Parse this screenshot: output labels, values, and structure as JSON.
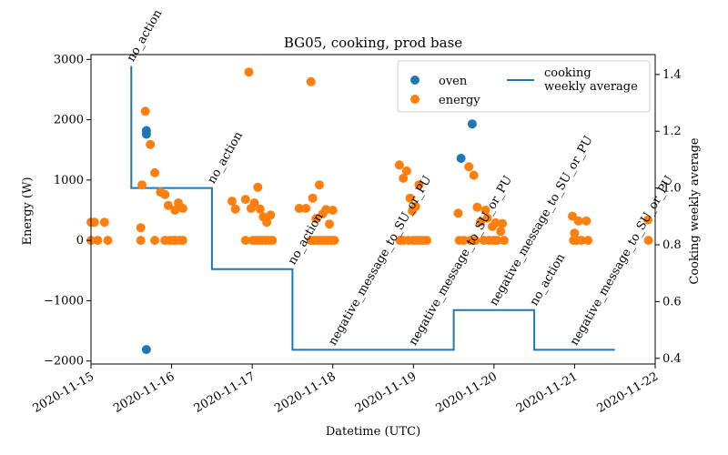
{
  "chart_data": {
    "type": "scatter",
    "title": "BG05, cooking, prod base",
    "xlabel": "Datetime (UTC)",
    "ylabel_left": "Energy (W)",
    "ylabel_right": "Cooking weekly average",
    "x_ticks": [
      "2020-11-15",
      "2020-11-16",
      "2020-11-17",
      "2020-11-18",
      "2020-11-19",
      "2020-11-20",
      "2020-11-21",
      "2020-11-22"
    ],
    "xlim": [
      "2020-11-15",
      "2020-11-22"
    ],
    "ylim_left": [
      -2050,
      3080
    ],
    "yticks_left": [
      -2000,
      -1000,
      0,
      1000,
      2000,
      3000
    ],
    "ylim_right": [
      0.38,
      1.47
    ],
    "yticks_right": [
      0.4,
      0.6,
      0.8,
      1.0,
      1.2,
      1.4
    ],
    "legend_position": "top-right",
    "series": [
      {
        "name": "oven",
        "kind": "scatter",
        "axis": "left",
        "color": "#1f77b4",
        "points": [
          [
            "2020-11-15 16:30",
            1820
          ],
          [
            "2020-11-15 16:30",
            1760
          ],
          [
            "2020-11-15 16:30",
            -1810
          ],
          [
            "2020-11-19 14:10",
            1360
          ],
          [
            "2020-11-19 17:30",
            1930
          ]
        ]
      },
      {
        "name": "energy",
        "kind": "scatter",
        "axis": "left",
        "color": "#ff7f0e",
        "points": [
          [
            "2020-11-15 00:00",
            300
          ],
          [
            "2020-11-15 01:00",
            300
          ],
          [
            "2020-11-15 04:00",
            300
          ],
          [
            "2020-11-15 00:00",
            0
          ],
          [
            "2020-11-15 02:00",
            0
          ],
          [
            "2020-11-15 05:00",
            0
          ],
          [
            "2020-11-15 14:50",
            210
          ],
          [
            "2020-11-15 14:50",
            0
          ],
          [
            "2020-11-15 15:10",
            920
          ],
          [
            "2020-11-15 16:10",
            2140
          ],
          [
            "2020-11-15 17:40",
            1590
          ],
          [
            "2020-11-15 19:00",
            1120
          ],
          [
            "2020-11-15 19:00",
            0
          ],
          [
            "2020-11-15 20:40",
            800
          ],
          [
            "2020-11-15 22:00",
            760
          ],
          [
            "2020-11-15 22:00",
            0
          ],
          [
            "2020-11-15 23:00",
            580
          ],
          [
            "2020-11-15 23:30",
            0
          ],
          [
            "2020-11-16 00:30",
            0
          ],
          [
            "2020-11-16 01:00",
            500
          ],
          [
            "2020-11-16 01:10",
            0
          ],
          [
            "2020-11-16 02:00",
            620
          ],
          [
            "2020-11-16 02:30",
            0
          ],
          [
            "2020-11-16 03:20",
            530
          ],
          [
            "2020-11-16 03:20",
            0
          ],
          [
            "2020-11-16 18:00",
            650
          ],
          [
            "2020-11-16 19:00",
            520
          ],
          [
            "2020-11-16 22:00",
            680
          ],
          [
            "2020-11-16 22:00",
            0
          ],
          [
            "2020-11-16 23:00",
            2790
          ],
          [
            "2020-11-16 23:40",
            530
          ],
          [
            "2020-11-17 00:10",
            0
          ],
          [
            "2020-11-17 00:40",
            620
          ],
          [
            "2020-11-17 01:00",
            0
          ],
          [
            "2020-11-17 01:40",
            880
          ],
          [
            "2020-11-17 02:00",
            0
          ],
          [
            "2020-11-17 02:20",
            520
          ],
          [
            "2020-11-17 03:00",
            0
          ],
          [
            "2020-11-17 03:20",
            390
          ],
          [
            "2020-11-17 04:00",
            0
          ],
          [
            "2020-11-17 04:20",
            300
          ],
          [
            "2020-11-17 05:00",
            0
          ],
          [
            "2020-11-17 05:30",
            420
          ],
          [
            "2020-11-17 06:00",
            0
          ],
          [
            "2020-11-17 14:00",
            530
          ],
          [
            "2020-11-17 16:00",
            530
          ],
          [
            "2020-11-17 17:30",
            2630
          ],
          [
            "2020-11-17 17:30",
            0
          ],
          [
            "2020-11-17 18:00",
            700
          ],
          [
            "2020-11-17 18:30",
            0
          ],
          [
            "2020-11-17 19:00",
            360
          ],
          [
            "2020-11-17 19:30",
            0
          ],
          [
            "2020-11-17 20:00",
            920
          ],
          [
            "2020-11-17 20:30",
            0
          ],
          [
            "2020-11-17 21:00",
            440
          ],
          [
            "2020-11-17 21:30",
            0
          ],
          [
            "2020-11-17 22:00",
            510
          ],
          [
            "2020-11-17 22:30",
            0
          ],
          [
            "2020-11-17 23:00",
            270
          ],
          [
            "2020-11-17 23:30",
            0
          ],
          [
            "2020-11-18 00:00",
            500
          ],
          [
            "2020-11-18 00:30",
            0
          ],
          [
            "2020-11-18 19:50",
            1250
          ],
          [
            "2020-11-18 20:00",
            0
          ],
          [
            "2020-11-18 21:00",
            1030
          ],
          [
            "2020-11-18 21:00",
            0
          ],
          [
            "2020-11-18 22:00",
            1150
          ],
          [
            "2020-11-18 22:30",
            0
          ],
          [
            "2020-11-18 23:00",
            700
          ],
          [
            "2020-11-18 23:40",
            490
          ],
          [
            "2020-11-19 00:00",
            0
          ],
          [
            "2020-11-19 00:40",
            560
          ],
          [
            "2020-11-19 01:00",
            0
          ],
          [
            "2020-11-19 01:40",
            920
          ],
          [
            "2020-11-19 02:00",
            0
          ],
          [
            "2020-11-19 03:00",
            0
          ],
          [
            "2020-11-19 04:00",
            0
          ],
          [
            "2020-11-19 13:20",
            450
          ],
          [
            "2020-11-19 13:40",
            0
          ],
          [
            "2020-11-19 15:00",
            0
          ],
          [
            "2020-11-19 16:30",
            1220
          ],
          [
            "2020-11-19 17:00",
            0
          ],
          [
            "2020-11-19 18:00",
            1080
          ],
          [
            "2020-11-19 18:30",
            0
          ],
          [
            "2020-11-19 19:00",
            550
          ],
          [
            "2020-11-19 20:00",
            310
          ],
          [
            "2020-11-19 21:00",
            0
          ],
          [
            "2020-11-19 21:30",
            500
          ],
          [
            "2020-11-19 22:00",
            370
          ],
          [
            "2020-11-19 22:30",
            0
          ],
          [
            "2020-11-19 23:30",
            230
          ],
          [
            "2020-11-20 00:00",
            0
          ],
          [
            "2020-11-20 00:30",
            290
          ],
          [
            "2020-11-20 01:00",
            0
          ],
          [
            "2020-11-20 02:00",
            150
          ],
          [
            "2020-11-20 02:30",
            280
          ],
          [
            "2020-11-20 03:00",
            0
          ],
          [
            "2020-11-20 23:20",
            400
          ],
          [
            "2020-11-20 23:40",
            0
          ],
          [
            "2020-11-21 00:00",
            120
          ],
          [
            "2020-11-21 00:30",
            0
          ],
          [
            "2020-11-21 01:10",
            320
          ],
          [
            "2020-11-21 02:00",
            0
          ],
          [
            "2020-11-21 03:30",
            320
          ],
          [
            "2020-11-21 04:00",
            0
          ],
          [
            "2020-11-21 21:50",
            340
          ],
          [
            "2020-11-21 22:00",
            0
          ]
        ]
      },
      {
        "name": "cooking\nweekly average",
        "kind": "step",
        "axis": "right",
        "color": "#1f77b4",
        "points": [
          [
            "2020-11-15 12:00",
            1.43
          ],
          [
            "2020-11-15 12:00",
            1.0
          ],
          [
            "2020-11-16 12:00",
            1.0
          ],
          [
            "2020-11-16 12:00",
            0.714
          ],
          [
            "2020-11-17 12:00",
            0.714
          ],
          [
            "2020-11-17 12:00",
            0.43
          ],
          [
            "2020-11-19 12:00",
            0.43
          ],
          [
            "2020-11-19 12:00",
            0.57
          ],
          [
            "2020-11-20 12:00",
            0.57
          ],
          [
            "2020-11-20 12:00",
            0.43
          ],
          [
            "2020-11-21 12:00",
            0.43
          ]
        ]
      }
    ],
    "annotations": [
      {
        "text": "no_action",
        "x": "2020-11-15 12:00",
        "y_right": 1.43
      },
      {
        "text": "no_action",
        "x": "2020-11-16 12:00",
        "y_right": 1.0
      },
      {
        "text": "no_action",
        "x": "2020-11-17 12:00",
        "y_right": 0.714
      },
      {
        "text": "negative_message_to_SU_or_PU",
        "x": "2020-11-18 00:00",
        "y_right": 0.43
      },
      {
        "text": "negative_message_to_SU_or_PU",
        "x": "2020-11-19 00:00",
        "y_right": 0.43
      },
      {
        "text": "negative_message_to_SU_or_PU",
        "x": "2020-11-20 00:00",
        "y_right": 0.57
      },
      {
        "text": "no_action",
        "x": "2020-11-20 12:00",
        "y_right": 0.57
      },
      {
        "text": "negative_message_to_SU_or_PU",
        "x": "2020-11-21 00:00",
        "y_right": 0.43
      }
    ]
  }
}
